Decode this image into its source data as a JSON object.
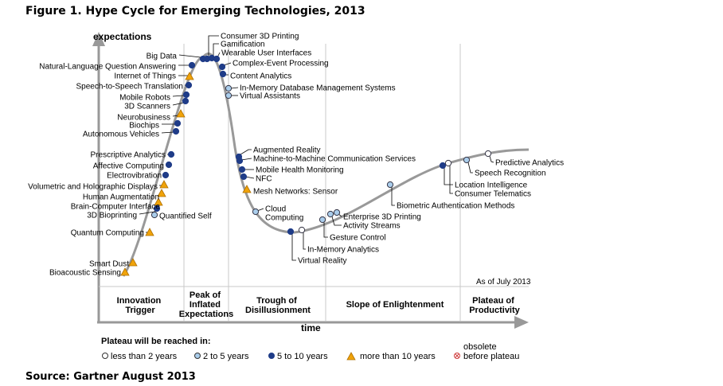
{
  "figure_title": "Figure 1. Hype Cycle for Emerging Technologies, 2013",
  "source": "Source: Gartner August 2013",
  "axes": {
    "y_label": "expectations",
    "x_label": "time"
  },
  "as_of": "As of July 2013",
  "phases": [
    [
      "Innovation",
      "Trigger"
    ],
    [
      "Peak of",
      "Inflated",
      "Expectations"
    ],
    [
      "Trough of",
      "Disillusionment"
    ],
    [
      "Slope of Enlightenment"
    ],
    [
      "Plateau of",
      "Productivity"
    ]
  ],
  "legend": {
    "title": "Plateau will be reached in:",
    "items": [
      "less than 2 years",
      "2 to 5 years",
      "5 to 10 years",
      "more than 10 years"
    ],
    "obsolete": [
      "obsolete",
      "before plateau"
    ]
  },
  "colors": {
    "curve": "#999999",
    "lt2": "#ffffff",
    "y2to5": "#aacdeb",
    "y5to10": "#1f3c88",
    "gt10": "#f0a30a"
  },
  "technologies": [
    {
      "name": "Consumer 3D Printing",
      "cat": "y5to10"
    },
    {
      "name": "Gamification",
      "cat": "y5to10"
    },
    {
      "name": "Wearable User Interfaces",
      "cat": "y5to10"
    },
    {
      "name": "Complex-Event Processing",
      "cat": "y5to10"
    },
    {
      "name": "Big Data",
      "cat": "y5to10"
    },
    {
      "name": "Content Analytics",
      "cat": "y5to10"
    },
    {
      "name": "Natural-Language Question Answering",
      "cat": "y5to10"
    },
    {
      "name": "Internet of Things",
      "cat": "gt10"
    },
    {
      "name": "Speech-to-Speech Translation",
      "cat": "y5to10"
    },
    {
      "name": "In-Memory Database Management Systems",
      "cat": "y2to5"
    },
    {
      "name": "Virtual Assistants",
      "cat": "y2to5"
    },
    {
      "name": "Mobile Robots",
      "cat": "y5to10"
    },
    {
      "name": "3D Scanners",
      "cat": "y5to10"
    },
    {
      "name": "Neurobusiness",
      "cat": "gt10"
    },
    {
      "name": "Biochips",
      "cat": "y5to10"
    },
    {
      "name": "Autonomous Vehicles",
      "cat": "y5to10"
    },
    {
      "name": "Prescriptive Analytics",
      "cat": "y5to10"
    },
    {
      "name": "Affective Computing",
      "cat": "y5to10"
    },
    {
      "name": "Electrovibration",
      "cat": "y5to10"
    },
    {
      "name": "Volumetric and Holographic Displays",
      "cat": "gt10"
    },
    {
      "name": "Human Augmentation",
      "cat": "gt10"
    },
    {
      "name": "Brain-Computer Interface",
      "cat": "gt10"
    },
    {
      "name": "3D Bioprinting",
      "cat": "y5to10"
    },
    {
      "name": "Quantified Self",
      "cat": "y2to5"
    },
    {
      "name": "Quantum Computing",
      "cat": "gt10"
    },
    {
      "name": "Smart Dust",
      "cat": "gt10"
    },
    {
      "name": "Bioacoustic Sensing",
      "cat": "gt10"
    },
    {
      "name": "Augmented Reality",
      "cat": "y5to10"
    },
    {
      "name": "Machine-to-Machine Communication Services",
      "cat": "y5to10"
    },
    {
      "name": "Mobile Health Monitoring",
      "cat": "y5to10"
    },
    {
      "name": "NFC",
      "cat": "y5to10"
    },
    {
      "name": "Mesh Networks: Sensor",
      "cat": "gt10"
    },
    {
      "name": "Cloud Computing",
      "cat": "y2to5"
    },
    {
      "name": "Virtual Reality",
      "cat": "y5to10"
    },
    {
      "name": "In-Memory Analytics",
      "cat": "lt2"
    },
    {
      "name": "Gesture Control",
      "cat": "y2to5"
    },
    {
      "name": "Activity Streams",
      "cat": "y2to5"
    },
    {
      "name": "Enterprise 3D Printing",
      "cat": "y2to5"
    },
    {
      "name": "Biometric Authentication Methods",
      "cat": "y2to5"
    },
    {
      "name": "Location Intelligence",
      "cat": "y5to10"
    },
    {
      "name": "Consumer Telematics",
      "cat": "lt2"
    },
    {
      "name": "Speech Recognition",
      "cat": "y2to5"
    },
    {
      "name": "Predictive Analytics",
      "cat": "lt2"
    }
  ]
}
